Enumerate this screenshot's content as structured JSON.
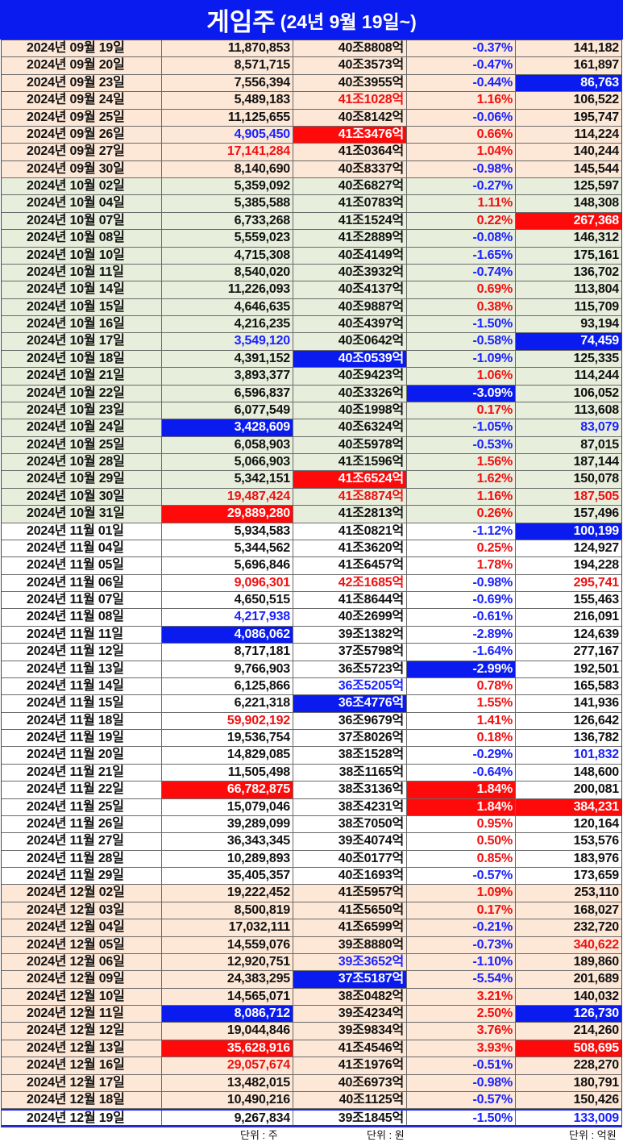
{
  "title": {
    "main": "게임주",
    "sub": "(24년 9월 19일~)"
  },
  "colors": {
    "blue_bg": "#0a1bf0",
    "red_bg": "#ff0a0a",
    "red_text": "#f01010",
    "blue_text": "#1a22ff",
    "peach": "#fde7d6",
    "green": "#e8eedc"
  },
  "units": {
    "shares": "단위 : 주",
    "won": "단위 : 원",
    "eokwon": "단위 : 억원"
  },
  "rows": [
    {
      "bg": "peach",
      "date": "2024년 09월 19일",
      "volume": "11,870,853",
      "cap": "40조8808억",
      "change": "-0.37%",
      "amount": "141,182"
    },
    {
      "bg": "peach",
      "date": "2024년 09월 20일",
      "volume": "8,571,715",
      "cap": "40조3573억",
      "change": "-0.47%",
      "amount": "161,897"
    },
    {
      "bg": "peach",
      "date": "2024년 09월 23일",
      "volume": "7,556,394",
      "cap": "40조3955억",
      "change": "-0.44%",
      "amount": "86,763",
      "amount_style": "bgblue"
    },
    {
      "bg": "peach",
      "date": "2024년 09월 24일",
      "volume": "5,489,183",
      "cap": "41조1028억",
      "cap_style": "red",
      "change": "1.16%",
      "amount": "106,522"
    },
    {
      "bg": "peach",
      "date": "2024년 09월 25일",
      "volume": "11,125,655",
      "cap": "40조8142억",
      "change": "-0.06%",
      "amount": "195,747"
    },
    {
      "bg": "peach",
      "date": "2024년 09월 26일",
      "volume": "4,905,450",
      "volume_style": "blue",
      "cap": "41조3476억",
      "cap_style": "bgred",
      "change": "0.66%",
      "amount": "114,224"
    },
    {
      "bg": "peach",
      "date": "2024년 09월 27일",
      "volume": "17,141,284",
      "volume_style": "red",
      "cap": "41조0364억",
      "change": "1.04%",
      "amount": "140,244"
    },
    {
      "bg": "peach",
      "date": "2024년 09월 30일",
      "volume": "8,140,690",
      "cap": "40조8337억",
      "change": "-0.98%",
      "amount": "145,544"
    },
    {
      "bg": "green",
      "date": "2024년 10월 02일",
      "volume": "5,359,092",
      "cap": "40조6827억",
      "change": "-0.27%",
      "amount": "125,597"
    },
    {
      "bg": "green",
      "date": "2024년 10월 04일",
      "volume": "5,385,588",
      "cap": "41조0783억",
      "change": "1.11%",
      "amount": "148,308"
    },
    {
      "bg": "green",
      "date": "2024년 10월 07일",
      "volume": "6,733,268",
      "cap": "41조1524억",
      "change": "0.22%",
      "amount": "267,368",
      "amount_style": "bgred"
    },
    {
      "bg": "green",
      "date": "2024년 10월 08일",
      "volume": "5,559,023",
      "cap": "41조2889억",
      "change": "-0.08%",
      "amount": "146,312"
    },
    {
      "bg": "green",
      "date": "2024년 10월 10일",
      "volume": "4,715,308",
      "cap": "40조4149억",
      "change": "-1.65%",
      "amount": "175,161"
    },
    {
      "bg": "green",
      "date": "2024년 10월 11일",
      "volume": "8,540,020",
      "cap": "40조3932억",
      "change": "-0.74%",
      "amount": "136,702"
    },
    {
      "bg": "green",
      "date": "2024년 10월 14일",
      "volume": "11,226,093",
      "cap": "40조4137억",
      "change": "0.69%",
      "amount": "113,804"
    },
    {
      "bg": "green",
      "date": "2024년 10월 15일",
      "volume": "4,646,635",
      "cap": "40조9887억",
      "change": "0.38%",
      "amount": "115,709"
    },
    {
      "bg": "green",
      "date": "2024년 10월 16일",
      "volume": "4,216,235",
      "cap": "40조4397억",
      "change": "-1.50%",
      "amount": "93,194"
    },
    {
      "bg": "green",
      "date": "2024년 10월 17일",
      "volume": "3,549,120",
      "volume_style": "blue",
      "cap": "40조0642억",
      "change": "-0.58%",
      "amount": "74,459",
      "amount_style": "bgblue"
    },
    {
      "bg": "green",
      "date": "2024년 10월 18일",
      "volume": "4,391,152",
      "cap": "40조0539억",
      "cap_style": "bgblue",
      "change": "-1.09%",
      "amount": "125,335"
    },
    {
      "bg": "green",
      "date": "2024년 10월 21일",
      "volume": "3,893,377",
      "cap": "40조9423억",
      "change": "1.06%",
      "amount": "114,244"
    },
    {
      "bg": "green",
      "date": "2024년 10월 22일",
      "volume": "6,596,837",
      "cap": "40조3326억",
      "change": "-3.09%",
      "change_style": "bgblue",
      "amount": "106,052"
    },
    {
      "bg": "green",
      "date": "2024년 10월 23일",
      "volume": "6,077,549",
      "cap": "40조1998억",
      "change": "0.17%",
      "amount": "113,608"
    },
    {
      "bg": "green",
      "date": "2024년 10월 24일",
      "volume": "3,428,609",
      "volume_style": "bgblue",
      "cap": "40조6324억",
      "change": "-1.05%",
      "amount": "83,079",
      "amount_style": "blue"
    },
    {
      "bg": "green",
      "date": "2024년 10월 25일",
      "volume": "6,058,903",
      "cap": "40조5978억",
      "change": "-0.53%",
      "amount": "87,015"
    },
    {
      "bg": "green",
      "date": "2024년 10월 28일",
      "volume": "5,066,903",
      "cap": "41조1596억",
      "change": "1.56%",
      "amount": "187,144"
    },
    {
      "bg": "green",
      "date": "2024년 10월 29일",
      "volume": "5,342,151",
      "cap": "41조6524억",
      "cap_style": "bgred",
      "change": "1.62%",
      "amount": "150,078"
    },
    {
      "bg": "green",
      "date": "2024년 10월 30일",
      "volume": "19,487,424",
      "volume_style": "red",
      "cap": "41조8874억",
      "cap_style": "red",
      "change": "1.16%",
      "amount": "187,505",
      "amount_style": "red"
    },
    {
      "bg": "green",
      "date": "2024년 10월 31일",
      "volume": "29,889,280",
      "volume_style": "bgred",
      "cap": "41조2813억",
      "change": "0.26%",
      "amount": "157,496"
    },
    {
      "bg": "white",
      "date": "2024년 11월 01일",
      "volume": "5,934,583",
      "cap": "41조0821억",
      "change": "-1.12%",
      "amount": "100,199",
      "amount_style": "bgblue"
    },
    {
      "bg": "white",
      "date": "2024년 11월 04일",
      "volume": "5,344,562",
      "cap": "41조3620억",
      "change": "0.25%",
      "amount": "124,927"
    },
    {
      "bg": "white",
      "date": "2024년 11월 05일",
      "volume": "5,696,846",
      "cap": "41조6457억",
      "change": "1.78%",
      "amount": "194,228"
    },
    {
      "bg": "white",
      "date": "2024년 11월 06일",
      "volume": "9,096,301",
      "volume_style": "red",
      "cap": "42조1685억",
      "cap_style": "red",
      "change": "-0.98%",
      "amount": "295,741",
      "amount_style": "red"
    },
    {
      "bg": "white",
      "date": "2024년 11월 07일",
      "volume": "4,650,515",
      "cap": "41조8644억",
      "change": "-0.69%",
      "amount": "155,463"
    },
    {
      "bg": "white",
      "date": "2024년 11월 08일",
      "volume": "4,217,938",
      "volume_style": "blue",
      "cap": "40조2699억",
      "change": "-0.61%",
      "amount": "216,091"
    },
    {
      "bg": "white",
      "date": "2024년 11월 11일",
      "volume": "4,086,062",
      "volume_style": "bgblue",
      "cap": "39조1382억",
      "change": "-2.89%",
      "amount": "124,639"
    },
    {
      "bg": "white",
      "date": "2024년 11월 12일",
      "volume": "8,717,181",
      "cap": "37조5798억",
      "change": "-1.64%",
      "amount": "277,167"
    },
    {
      "bg": "white",
      "date": "2024년 11월 13일",
      "volume": "9,766,903",
      "cap": "36조5723억",
      "change": "-2.99%",
      "change_style": "bgblue",
      "amount": "192,501"
    },
    {
      "bg": "white",
      "date": "2024년 11월 14일",
      "volume": "6,125,866",
      "cap": "36조5205억",
      "cap_style": "blue",
      "change": "0.78%",
      "amount": "165,583"
    },
    {
      "bg": "white",
      "date": "2024년 11월 15일",
      "volume": "6,221,318",
      "cap": "36조4776억",
      "cap_style": "bgblue",
      "change": "1.55%",
      "amount": "141,936"
    },
    {
      "bg": "white",
      "date": "2024년 11월 18일",
      "volume": "59,902,192",
      "volume_style": "red",
      "cap": "36조9679억",
      "change": "1.41%",
      "amount": "126,642"
    },
    {
      "bg": "white",
      "date": "2024년 11월 19일",
      "volume": "19,536,754",
      "cap": "37조8026억",
      "change": "0.18%",
      "amount": "136,782"
    },
    {
      "bg": "white",
      "date": "2024년 11월 20일",
      "volume": "14,829,085",
      "cap": "38조1528억",
      "change": "-0.29%",
      "amount": "101,832",
      "amount_style": "blue"
    },
    {
      "bg": "white",
      "date": "2024년 11월 21일",
      "volume": "11,505,498",
      "cap": "38조1165억",
      "change": "-0.64%",
      "amount": "148,600"
    },
    {
      "bg": "white",
      "date": "2024년 11월 22일",
      "volume": "66,782,875",
      "volume_style": "bgred",
      "cap": "38조3136억",
      "change": "1.84%",
      "change_style": "bgred",
      "amount": "200,081"
    },
    {
      "bg": "white",
      "date": "2024년 11월 25일",
      "volume": "15,079,046",
      "cap": "38조4231억",
      "change": "1.84%",
      "change_style": "bgred",
      "amount": "384,231",
      "amount_style": "bgred"
    },
    {
      "bg": "white",
      "date": "2024년 11월 26일",
      "volume": "39,289,099",
      "cap": "38조7050억",
      "change": "0.95%",
      "amount": "120,164"
    },
    {
      "bg": "white",
      "date": "2024년 11월 27일",
      "volume": "36,343,345",
      "cap": "39조4074억",
      "change": "0.50%",
      "amount": "153,576"
    },
    {
      "bg": "white",
      "date": "2024년 11월 28일",
      "volume": "10,289,893",
      "cap": "40조0177억",
      "change": "0.85%",
      "amount": "183,976"
    },
    {
      "bg": "white",
      "date": "2024년 11월 29일",
      "volume": "35,405,357",
      "cap": "40조1693억",
      "change": "-0.57%",
      "amount": "173,659"
    },
    {
      "bg": "peach",
      "date": "2024년 12월 02일",
      "volume": "19,222,452",
      "cap": "41조5957억",
      "change": "1.09%",
      "amount": "253,110"
    },
    {
      "bg": "peach",
      "date": "2024년 12월 03일",
      "volume": "8,500,819",
      "cap": "41조5650억",
      "change": "0.17%",
      "amount": "168,027"
    },
    {
      "bg": "peach",
      "date": "2024년 12월 04일",
      "volume": "17,032,111",
      "cap": "41조6599억",
      "change": "-0.21%",
      "amount": "232,720"
    },
    {
      "bg": "peach",
      "date": "2024년 12월 05일",
      "volume": "14,559,076",
      "cap": "39조8880억",
      "change": "-0.73%",
      "amount": "340,622",
      "amount_style": "red"
    },
    {
      "bg": "peach",
      "date": "2024년 12월 06일",
      "volume": "12,920,751",
      "cap": "39조3652억",
      "cap_style": "blue",
      "change": "-1.10%",
      "amount": "189,860"
    },
    {
      "bg": "peach",
      "date": "2024년 12월 09일",
      "volume": "24,383,295",
      "cap": "37조5187억",
      "cap_style": "bgblue",
      "change": "-5.54%",
      "amount": "201,689"
    },
    {
      "bg": "peach",
      "date": "2024년 12월 10일",
      "volume": "14,565,071",
      "cap": "38조0482억",
      "change": "3.21%",
      "amount": "140,032"
    },
    {
      "bg": "peach",
      "date": "2024년 12월 11일",
      "volume": "8,086,712",
      "volume_style": "bgblue",
      "cap": "39조4234억",
      "change": "2.50%",
      "amount": "126,730",
      "amount_style": "bgblue"
    },
    {
      "bg": "peach",
      "date": "2024년 12월 12일",
      "volume": "19,044,846",
      "cap": "39조9834억",
      "change": "3.76%",
      "amount": "214,260"
    },
    {
      "bg": "peach",
      "date": "2024년 12월 13일",
      "volume": "35,628,916",
      "volume_style": "bgred",
      "cap": "41조4546억",
      "change": "3.93%",
      "amount": "508,695",
      "amount_style": "bgred"
    },
    {
      "bg": "peach",
      "date": "2024년 12월 16일",
      "volume": "29,057,674",
      "volume_style": "red",
      "cap": "41조1976억",
      "change": "-0.51%",
      "amount": "228,270"
    },
    {
      "bg": "peach",
      "date": "2024년 12월 17일",
      "volume": "13,482,015",
      "cap": "40조6973억",
      "change": "-0.98%",
      "amount": "180,791"
    },
    {
      "bg": "peach",
      "date": "2024년 12월 18일",
      "volume": "10,490,216",
      "cap": "40조1125억",
      "change": "-0.57%",
      "amount": "150,426"
    },
    {
      "bg": "white",
      "date": "2024년 12월 19일",
      "volume": "9,267,834",
      "cap": "39조1845억",
      "change": "-1.50%",
      "amount": "133,009",
      "amount_style": "blue"
    }
  ]
}
